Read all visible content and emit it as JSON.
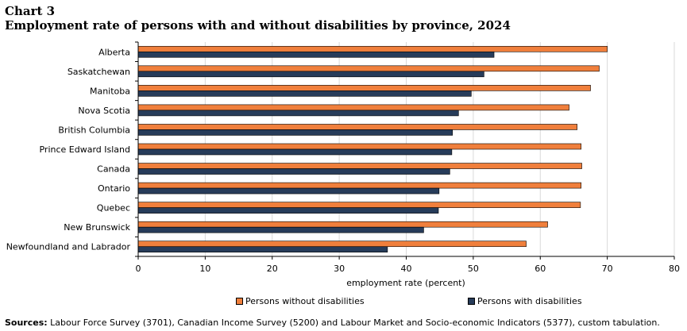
{
  "header": {
    "chart_number": "Chart 3",
    "title": "Employment rate of persons with and without disabilities  by province, 2024"
  },
  "chart_data": {
    "type": "bar",
    "orientation": "horizontal",
    "categories": [
      "Alberta",
      "Saskatchewan",
      "Manitoba",
      "Nova Scotia",
      "British Columbia",
      "Prince Edward Island",
      "Canada",
      "Ontario",
      "Quebec",
      "New Brunswick",
      "Newfoundland and Labrador"
    ],
    "series": [
      {
        "name": "Persons without disabilities",
        "color": "#f07f3c",
        "values": [
          70.0,
          68.8,
          67.5,
          64.3,
          65.5,
          66.1,
          66.2,
          66.1,
          66.0,
          61.1,
          57.9
        ]
      },
      {
        "name": "Persons with disabilities",
        "color": "#273c5a",
        "values": [
          53.1,
          51.6,
          49.7,
          47.8,
          46.9,
          46.8,
          46.5,
          44.9,
          44.8,
          42.6,
          37.2
        ]
      }
    ],
    "xlim": [
      0,
      80
    ],
    "xticks": [
      "0",
      "10",
      "20",
      "30",
      "40",
      "50",
      "60",
      "70",
      "80"
    ],
    "xlabel": "employment rate (percent)",
    "ylabel": "",
    "grid": true,
    "legend": "bottom"
  },
  "sources": {
    "label": "Sources:",
    "text": "Labour Force Survey (3701), Canadian Income Survey (5200) and Labour Market and Socio-economic Indicators (5377), custom tabulation."
  }
}
